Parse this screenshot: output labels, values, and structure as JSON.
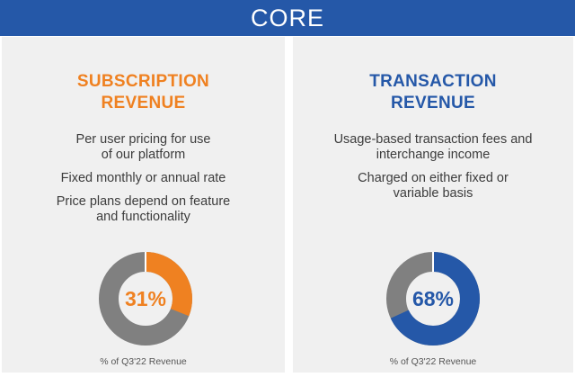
{
  "header": {
    "title": "CORE"
  },
  "colors": {
    "header_bg": "#2558a8",
    "orange": "#ef8121",
    "blue": "#2558a8",
    "gray": "#808080",
    "panel_bg": "#f0f0f0"
  },
  "subscription": {
    "title_line1": "SUBSCRIPTION",
    "title_line2": "REVENUE",
    "bullets": [
      "Per user pricing for use\nof our platform",
      "Fixed monthly or annual rate",
      "Price plans depend on feature\nand functionality"
    ],
    "percent_label": "31%",
    "percent_value": 31,
    "caption": "% of Q3'22 Revenue"
  },
  "transaction": {
    "title_line1": "TRANSACTION",
    "title_line2": "REVENUE",
    "bullets": [
      "Usage-based transaction fees and\ninterchange income",
      "Charged on either fixed or\nvariable basis"
    ],
    "percent_label": "68%",
    "percent_value": 68,
    "caption": "% of Q3'22 Revenue"
  }
}
